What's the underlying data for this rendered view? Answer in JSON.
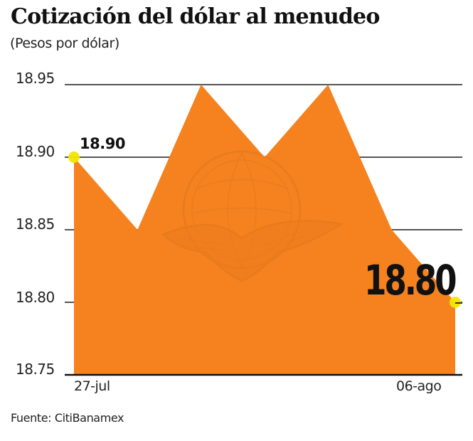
{
  "header": {
    "title": "Cotización del dólar al menudeo",
    "subtitle": "(Pesos por dólar)"
  },
  "footer": {
    "source": "Fuente: CitiBanamex"
  },
  "annotations": {
    "first_value": "18.90",
    "last_value": "18.80"
  },
  "colors": {
    "area_fill": "#F5821F",
    "marker": "#F2E600",
    "gridline": "#555555",
    "axis": "#111111"
  },
  "chart_data": {
    "type": "area",
    "title": "Cotización del dólar al menudeo",
    "subtitle": "(Pesos por dólar)",
    "xlabel": "",
    "ylabel": "Pesos por dólar",
    "x_tick_labels": [
      "27-jul",
      "06-ago"
    ],
    "y_tick_labels": [
      "18.95",
      "18.90",
      "18.85",
      "18.80",
      "18.75"
    ],
    "ylim": [
      18.75,
      18.95
    ],
    "grid": true,
    "legend": null,
    "series": [
      {
        "name": "Pesos por dólar",
        "values": [
          18.9,
          18.85,
          18.95,
          18.9,
          18.95,
          18.85,
          18.8
        ]
      }
    ],
    "highlighted_points": [
      {
        "index": 0,
        "label": "18.90"
      },
      {
        "index": 6,
        "label": "18.80"
      }
    ],
    "source": "Fuente: CitiBanamex"
  }
}
